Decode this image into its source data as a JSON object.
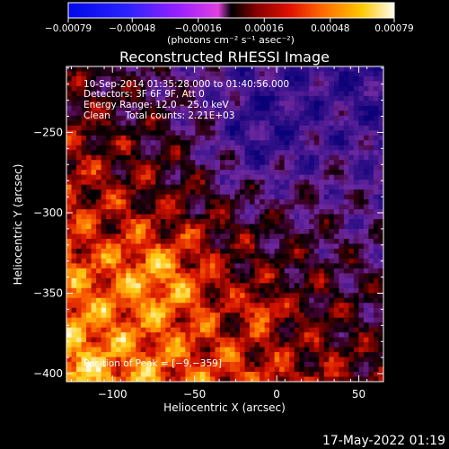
{
  "chart_data": {
    "type": "heatmap",
    "title": "Reconstructed RHESSI Image",
    "xlabel": "Heliocentric X (arcsec)",
    "ylabel": "Heliocentric Y (arcsec)",
    "xlim": [
      -128,
      65
    ],
    "ylim": [
      -405,
      -209
    ],
    "x_ticks": [
      {
        "value": -100,
        "label": "−100"
      },
      {
        "value": -50,
        "label": "−50"
      },
      {
        "value": 0,
        "label": "0"
      },
      {
        "value": 50,
        "label": "50"
      }
    ],
    "y_ticks": [
      {
        "value": -250,
        "label": "−250"
      },
      {
        "value": -300,
        "label": "−300"
      },
      {
        "value": -350,
        "label": "−350"
      },
      {
        "value": -400,
        "label": "−400"
      }
    ],
    "colorbar": {
      "range": [
        -0.00079,
        0.00079
      ],
      "ticks": [
        {
          "value": -0.00079,
          "label": "−0.00079"
        },
        {
          "value": -0.00048,
          "label": "−0.00048"
        },
        {
          "value": -0.00016,
          "label": "−0.00016"
        },
        {
          "value": 0.00016,
          "label": "0.00016"
        },
        {
          "value": 0.00048,
          "label": "0.00048"
        },
        {
          "value": 0.00079,
          "label": "0.00079"
        }
      ],
      "unit_label": "(photons cm⁻² s⁻¹ asec⁻²)"
    },
    "annotations": [
      "10-Sep-2014 01:35:28.000 to 01:40:56.000",
      "Detectors: 3F 6F 9F, Att 0",
      "Energy Range: 12.0 – 25.0 keV",
      "Clean     Total counts: 2.21E+03"
    ],
    "peak_label": "Position of Peak = [−9,−359]",
    "peak": {
      "x": -9,
      "y": -359
    },
    "timestamp": "17-May-2022 01:19"
  }
}
